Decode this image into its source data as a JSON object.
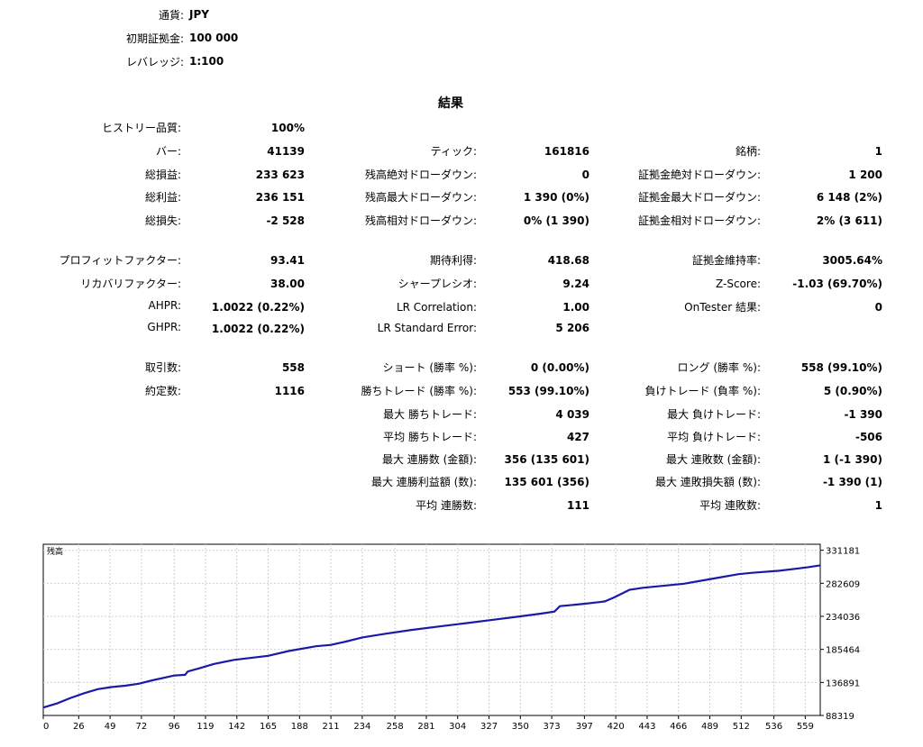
{
  "header": {
    "currency_label": "通貨:",
    "currency_value": "JPY",
    "deposit_label": "初期証拠金:",
    "deposit_value": "100 000",
    "leverage_label": "レバレッジ:",
    "leverage_value": "1:100"
  },
  "results_title": "結果",
  "col1": [
    {
      "label": "ヒストリー品質:",
      "value": "100%"
    },
    {
      "label": "バー:",
      "value": "41139"
    },
    {
      "label": "総損益:",
      "value": "233 623"
    },
    {
      "label": "総利益:",
      "value": "236 151"
    },
    {
      "label": "総損失:",
      "value": "-2 528"
    },
    {
      "label": "プロフィットファクター:",
      "value": "93.41"
    },
    {
      "label": "リカバリファクター:",
      "value": "38.00"
    },
    {
      "label": "AHPR:",
      "value": "1.0022 (0.22%)"
    },
    {
      "label": "GHPR:",
      "value": "1.0022 (0.22%)"
    },
    {
      "label": "取引数:",
      "value": "558"
    },
    {
      "label": "約定数:",
      "value": "1116"
    }
  ],
  "col2": [
    {
      "label": "ティック:",
      "value": "161816"
    },
    {
      "label": "残高絶対ドローダウン:",
      "value": "0"
    },
    {
      "label": "残高最大ドローダウン:",
      "value": "1 390 (0%)"
    },
    {
      "label": "残高相対ドローダウン:",
      "value": "0% (1 390)"
    },
    {
      "label": "期待利得:",
      "value": "418.68"
    },
    {
      "label": "シャープレシオ:",
      "value": "9.24"
    },
    {
      "label": "LR Correlation:",
      "value": "1.00"
    },
    {
      "label": "LR Standard Error:",
      "value": "5 206"
    },
    {
      "label": "ショート (勝率 %):",
      "value": "0 (0.00%)"
    },
    {
      "label": "勝ちトレード (勝率 %):",
      "value": "553 (99.10%)"
    },
    {
      "label": "最大 勝ちトレード:",
      "value": "4 039"
    },
    {
      "label": "平均 勝ちトレード:",
      "value": "427"
    },
    {
      "label": "最大 連勝数 (金額):",
      "value": "356 (135 601)"
    },
    {
      "label": "最大 連勝利益額 (数):",
      "value": "135 601 (356)"
    },
    {
      "label": "平均 連勝数:",
      "value": "111"
    }
  ],
  "col3": [
    {
      "label": "銘柄:",
      "value": "1"
    },
    {
      "label": "証拠金絶対ドローダウン:",
      "value": "1 200"
    },
    {
      "label": "証拠金最大ドローダウン:",
      "value": "6 148 (2%)"
    },
    {
      "label": "証拠金相対ドローダウン:",
      "value": "2% (3 611)"
    },
    {
      "label": "証拠金維持率:",
      "value": "3005.64%"
    },
    {
      "label": "Z-Score:",
      "value": "-1.03 (69.70%)"
    },
    {
      "label": "OnTester 結果:",
      "value": "0"
    },
    {
      "label": "ロング (勝率 %):",
      "value": "558 (99.10%)"
    },
    {
      "label": "負けトレード (負率 %):",
      "value": "5 (0.90%)"
    },
    {
      "label": "最大 負けトレード:",
      "value": "-1 390"
    },
    {
      "label": "平均 負けトレード:",
      "value": "-506"
    },
    {
      "label": "最大 連敗数 (金額):",
      "value": "1 (-1 390)"
    },
    {
      "label": "最大 連敗損失額 (数):",
      "value": "-1 390 (1)"
    },
    {
      "label": "平均 連敗数:",
      "value": "1"
    }
  ],
  "chart_data": {
    "type": "line",
    "title": "残高",
    "line_color": "#1a1aa6",
    "grid_color": "#cfcfcf",
    "grid": true,
    "x_ticks": [
      0,
      26,
      49,
      72,
      96,
      119,
      142,
      165,
      188,
      211,
      234,
      258,
      281,
      304,
      327,
      350,
      373,
      397,
      420,
      443,
      466,
      489,
      512,
      536,
      559
    ],
    "y_ticks": [
      88319,
      136891,
      185464,
      234036,
      282609,
      331181
    ],
    "xlim": [
      0,
      570
    ],
    "ylim": [
      88319,
      340000
    ],
    "series": [
      {
        "x": [
          0,
          10,
          20,
          30,
          40,
          50,
          60,
          70,
          80,
          96,
          104,
          106,
          115,
          125,
          140,
          165,
          180,
          200,
          211,
          222,
          234,
          250,
          270,
          290,
          310,
          330,
          350,
          365,
          375,
          379,
          395,
          408,
          412,
          419,
          425,
          430,
          440,
          450,
          470,
          490,
          510,
          520,
          540,
          560,
          570
        ],
        "y": [
          100000,
          106000,
          114000,
          121000,
          127000,
          130000,
          132000,
          135000,
          140000,
          147000,
          148000,
          153000,
          158000,
          164000,
          170000,
          176000,
          183000,
          190000,
          192000,
          197000,
          203000,
          208000,
          214000,
          219000,
          224000,
          229000,
          234000,
          238000,
          241000,
          249000,
          252000,
          255000,
          256000,
          262000,
          268000,
          273000,
          276000,
          278000,
          282000,
          289000,
          296000,
          298000,
          301000,
          306000,
          309000
        ]
      }
    ]
  }
}
